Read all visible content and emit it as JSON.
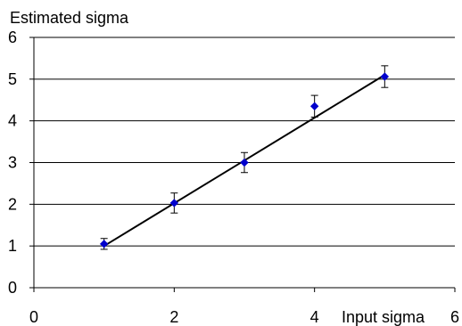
{
  "chart_data": {
    "type": "scatter",
    "title": "",
    "ylabel": "Estimated sigma",
    "xlabel": "Input sigma",
    "xlim": [
      0,
      6
    ],
    "ylim": [
      0,
      6
    ],
    "x_ticks": [
      "0",
      "2",
      "4",
      "6"
    ],
    "y_ticks": [
      "0",
      "1",
      "2",
      "3",
      "4",
      "5",
      "6"
    ],
    "grid": "horizontal",
    "series": [
      {
        "x": [
          1,
          2,
          3,
          4,
          5
        ],
        "y": [
          1.05,
          2.03,
          3.0,
          4.35,
          5.06
        ],
        "error": [
          0.13,
          0.24,
          0.24,
          0.26,
          0.26
        ],
        "marker": "diamond",
        "color": "#0000cc"
      }
    ],
    "fit_line": {
      "x": [
        1,
        5
      ],
      "y": [
        1.0,
        5.1
      ],
      "color": "#000000"
    }
  }
}
